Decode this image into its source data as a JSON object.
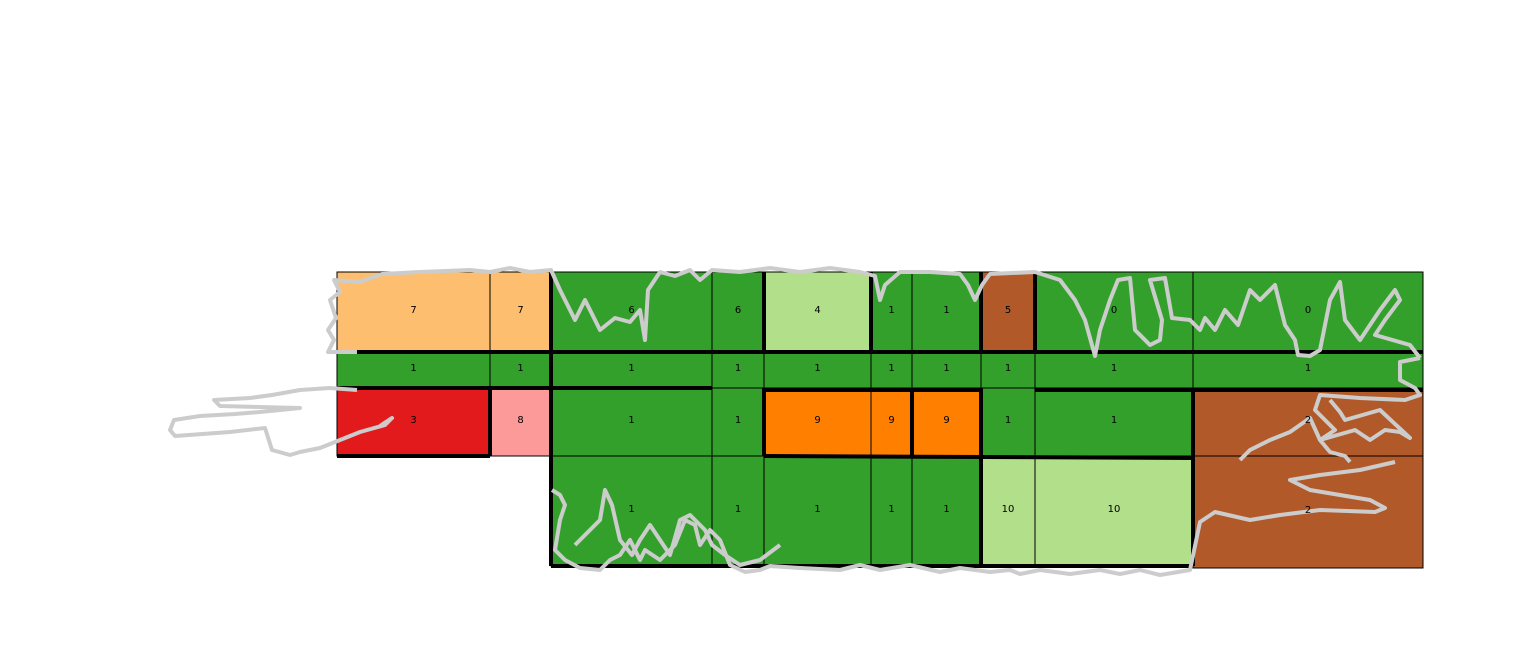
{
  "palette": {
    "green": "#33a02c",
    "light_green": "#b2df8a",
    "peach": "#fdbf6f",
    "red": "#e31a1c",
    "pink": "#fb9a99",
    "orange": "#ff7f00",
    "brown": "#b15928",
    "outline": "#cccccc",
    "border": "#000000"
  },
  "map": {
    "cells": [
      {
        "id": "c01",
        "label": "7",
        "color": "peach"
      },
      {
        "id": "c02",
        "label": "7",
        "color": "peach"
      },
      {
        "id": "c03",
        "label": "6",
        "color": "green"
      },
      {
        "id": "c04",
        "label": "6",
        "color": "green"
      },
      {
        "id": "c05",
        "label": "4",
        "color": "light_green"
      },
      {
        "id": "c06",
        "label": "1",
        "color": "green"
      },
      {
        "id": "c07",
        "label": "1",
        "color": "green"
      },
      {
        "id": "c08",
        "label": "5",
        "color": "brown"
      },
      {
        "id": "c09",
        "label": "0",
        "color": "green"
      },
      {
        "id": "c10",
        "label": "0",
        "color": "green"
      },
      {
        "id": "c11",
        "label": "1",
        "color": "green"
      },
      {
        "id": "c12",
        "label": "1",
        "color": "green"
      },
      {
        "id": "c13",
        "label": "1",
        "color": "green"
      },
      {
        "id": "c14",
        "label": "1",
        "color": "green"
      },
      {
        "id": "c15",
        "label": "1",
        "color": "green"
      },
      {
        "id": "c16",
        "label": "1",
        "color": "green"
      },
      {
        "id": "c17",
        "label": "1",
        "color": "green"
      },
      {
        "id": "c18",
        "label": "1",
        "color": "green"
      },
      {
        "id": "c19",
        "label": "1",
        "color": "green"
      },
      {
        "id": "c20",
        "label": "1",
        "color": "green"
      },
      {
        "id": "c21",
        "label": "3",
        "color": "red"
      },
      {
        "id": "c22",
        "label": "8",
        "color": "pink"
      },
      {
        "id": "c23",
        "label": "1",
        "color": "green"
      },
      {
        "id": "c24",
        "label": "1",
        "color": "green"
      },
      {
        "id": "c25",
        "label": "9",
        "color": "orange"
      },
      {
        "id": "c26",
        "label": "9",
        "color": "orange"
      },
      {
        "id": "c27",
        "label": "9",
        "color": "orange"
      },
      {
        "id": "c28",
        "label": "1",
        "color": "green"
      },
      {
        "id": "c29",
        "label": "1",
        "color": "green"
      },
      {
        "id": "c30",
        "label": "2",
        "color": "brown"
      },
      {
        "id": "c31",
        "label": "1",
        "color": "green"
      },
      {
        "id": "c32",
        "label": "1",
        "color": "green"
      },
      {
        "id": "c33",
        "label": "1",
        "color": "green"
      },
      {
        "id": "c34",
        "label": "1",
        "color": "green"
      },
      {
        "id": "c35",
        "label": "1",
        "color": "green"
      },
      {
        "id": "c36",
        "label": "10",
        "color": "light_green"
      },
      {
        "id": "c37",
        "label": "10",
        "color": "light_green"
      },
      {
        "id": "c38",
        "label": "2",
        "color": "brown"
      }
    ]
  }
}
